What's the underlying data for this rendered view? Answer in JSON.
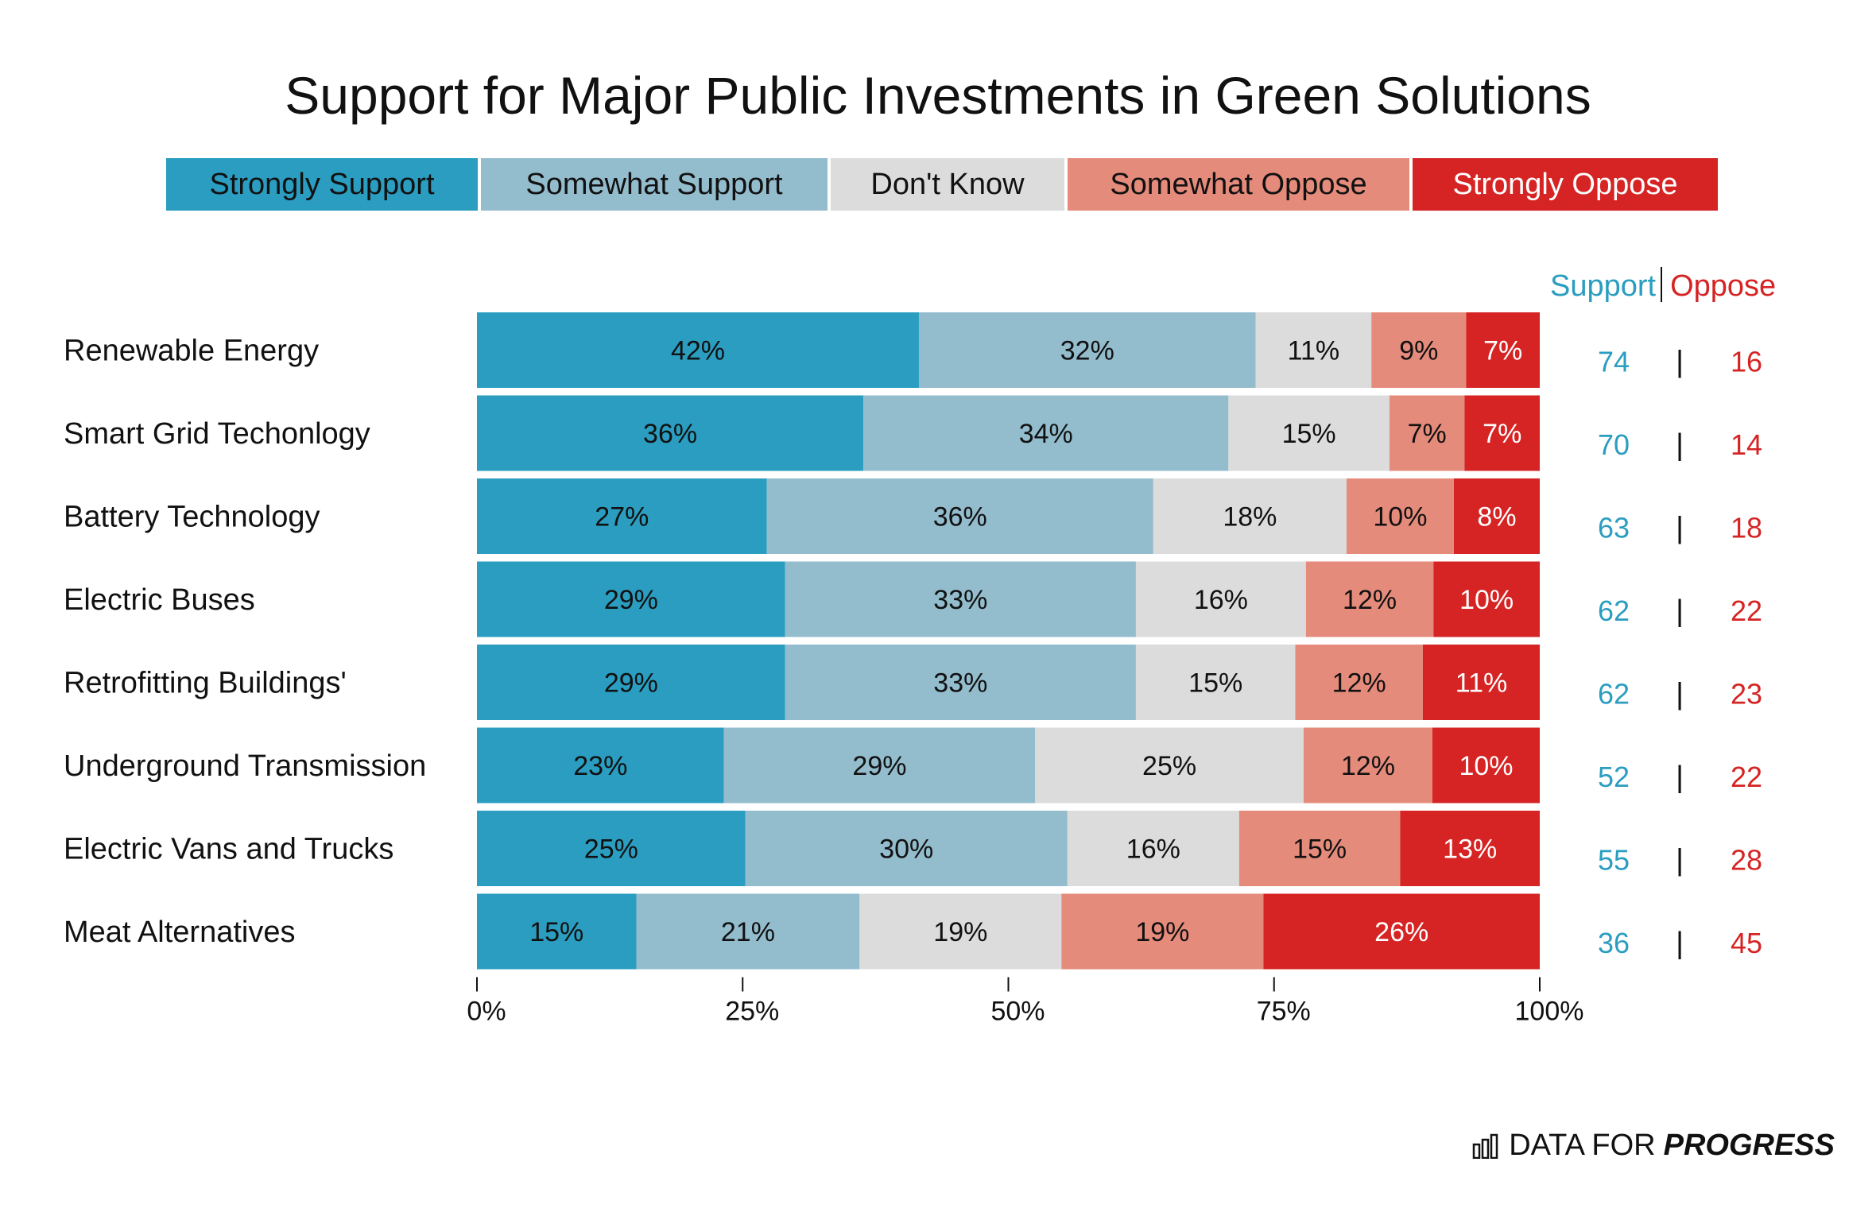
{
  "chart_data": {
    "type": "bar",
    "orientation": "horizontal",
    "stacked": true,
    "title": "Support for Major Public Investments in Green Solutions",
    "categories": [
      "Renewable Energy",
      "Smart Grid Techonlogy",
      "Battery Technology",
      "Electric Buses",
      "Retrofitting Buildings'",
      "Underground Transmission",
      "Electric Vans and Trucks",
      "Meat Alternatives"
    ],
    "series": [
      {
        "name": "Strongly Support",
        "color": "#2a9dc0",
        "text_color": "#111111",
        "values": [
          42,
          36,
          27,
          29,
          29,
          23,
          25,
          15
        ]
      },
      {
        "name": "Somewhat Support",
        "color": "#93bccd",
        "text_color": "#111111",
        "values": [
          32,
          34,
          36,
          33,
          33,
          29,
          30,
          21
        ]
      },
      {
        "name": "Don't Know",
        "color": "#dcdcdc",
        "text_color": "#111111",
        "values": [
          11,
          15,
          18,
          16,
          15,
          25,
          16,
          19
        ]
      },
      {
        "name": "Somewhat Oppose",
        "color": "#e58b7b",
        "text_color": "#111111",
        "values": [
          9,
          7,
          10,
          12,
          12,
          12,
          15,
          19
        ]
      },
      {
        "name": "Strongly Oppose",
        "color": "#d62424",
        "text_color": "#ffffff",
        "values": [
          7,
          7,
          8,
          10,
          11,
          10,
          13,
          26
        ]
      }
    ],
    "xlim": [
      0,
      100
    ],
    "x_ticks": [
      "0%",
      "25%",
      "50%",
      "75%",
      "100%"
    ],
    "x_tick_values": [
      0,
      25,
      50,
      75,
      100
    ],
    "xlabel": "",
    "ylabel": "",
    "summary": {
      "support_label": "Support",
      "oppose_label": "Oppose",
      "separator": "|",
      "support_color": "#2a9dc0",
      "oppose_color": "#d62424",
      "support": [
        74,
        70,
        63,
        62,
        62,
        52,
        55,
        36
      ],
      "oppose": [
        16,
        14,
        18,
        22,
        23,
        22,
        28,
        45
      ]
    }
  },
  "brand": {
    "prefix": "DATA FOR",
    "strong": "PROGRESS",
    "icon": "bar-chart-icon"
  }
}
